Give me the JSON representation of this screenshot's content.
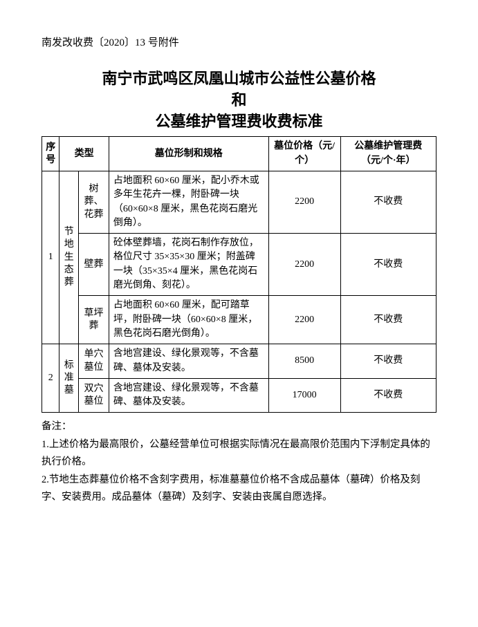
{
  "doc_reference": "南发改收费〔2020〕13 号附件",
  "title": {
    "line1": "南宁市武鸣区凤凰山城市公益性公墓价格",
    "line2": "和",
    "line3": "公墓维护管理费收费标准"
  },
  "headers": {
    "seq": "序号",
    "type": "类型",
    "spec": "墓位形制和规格",
    "price": "墓位价格（元/个）",
    "fee": "公墓维护管理费（元/个·年）"
  },
  "categories": [
    {
      "seq": "1",
      "cat_name": "节地生态葬",
      "subs": [
        {
          "name": "树葬、花葬",
          "spec": "占地面积 60×60 厘米，配小乔木或多年生花卉一棵，附卧碑一块（60×60×8 厘米，黑色花岗石磨光倒角）。",
          "price": "2200",
          "fee": "不收费"
        },
        {
          "name": "壁葬",
          "spec": "砼体壁葬墙，花岗石制作存放位，格位尺寸 35×35×30 厘米；附盖碑一块（35×35×4 厘米，黑色花岗石磨光倒角、刻花）。",
          "price": "2200",
          "fee": "不收费"
        },
        {
          "name": "草坪葬",
          "spec": "占地面积 60×60 厘米，配可踏草坪，附卧碑一块（60×60×8 厘米，黑色花岗石磨光倒角）。",
          "price": "2200",
          "fee": "不收费"
        }
      ]
    },
    {
      "seq": "2",
      "cat_name": "标准墓",
      "subs": [
        {
          "name": "单穴墓位",
          "spec": "含地宫建设、绿化景观等，不含墓碑、墓体及安装。",
          "price": "8500",
          "fee": "不收费"
        },
        {
          "name": "双穴墓位",
          "spec": "含地宫建设、绿化景观等，不含墓碑、墓体及安装。",
          "price": "17000",
          "fee": "不收费"
        }
      ]
    }
  ],
  "notes": {
    "heading": "备注：",
    "items": [
      "1.上述价格为最高限价，公墓经营单位可根据实际情况在最高限价范围内下浮制定具体的执行价格。",
      "2.节地生态葬墓位价格不含刻字费用，标准墓墓位价格不含成品墓体（墓碑）价格及刻字、安装费用。成品墓体（墓碑）及刻字、安装由丧属自愿选择。"
    ]
  }
}
